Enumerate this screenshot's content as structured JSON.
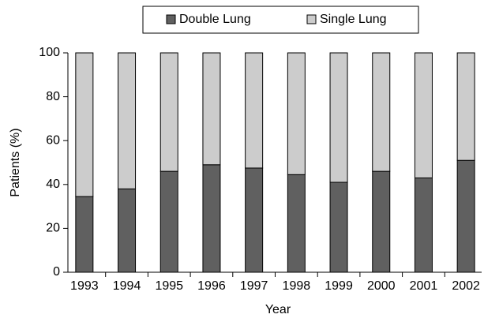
{
  "chart_data": {
    "type": "stacked_bar",
    "categories": [
      "1993",
      "1994",
      "1995",
      "1996",
      "1997",
      "1998",
      "1999",
      "2000",
      "2001",
      "2002"
    ],
    "series": [
      {
        "name": "Double Lung",
        "color": "#606060",
        "values": [
          34.5,
          38,
          46,
          49,
          47.5,
          44.5,
          41,
          46,
          43,
          51
        ]
      },
      {
        "name": "Single Lung",
        "color": "#cccccc",
        "values": [
          65.5,
          62,
          54,
          51,
          52.5,
          55.5,
          59,
          54,
          57,
          49
        ]
      }
    ],
    "y_label": "Patients (%)",
    "x_label": "Year",
    "ylim": [
      0,
      100
    ],
    "yticks": [
      0,
      20,
      40,
      60,
      80,
      100
    ]
  }
}
